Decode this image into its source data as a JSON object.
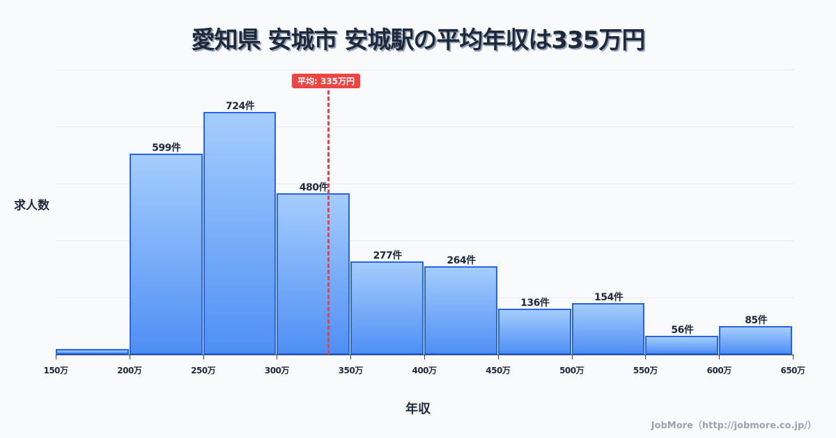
{
  "title": "愛知県 安城市 安城駅の平均年収は335万円",
  "y_axis_label": "求人数",
  "x_axis_label": "年収",
  "credit": "JobMore（http://jobmore.co.jp/）",
  "mean_badge": "平均: 335万円",
  "colors": {
    "bar_border": "#2563eb",
    "bar_top": "#a5cdfd",
    "bar_bottom": "#4f8ff4",
    "mean_line": "#ef4444",
    "text": "#1e293b"
  },
  "ticks": [
    "150万",
    "200万",
    "250万",
    "300万",
    "350万",
    "400万",
    "450万",
    "500万",
    "550万",
    "600万",
    "650万"
  ],
  "bars": [
    {
      "range": "150-200万",
      "value": 17,
      "label": ""
    },
    {
      "range": "200-250万",
      "value": 599,
      "label": "599件"
    },
    {
      "range": "250-300万",
      "value": 724,
      "label": "724件"
    },
    {
      "range": "300-350万",
      "value": 480,
      "label": "480件"
    },
    {
      "range": "350-400万",
      "value": 277,
      "label": "277件"
    },
    {
      "range": "400-450万",
      "value": 264,
      "label": "264件"
    },
    {
      "range": "450-500万",
      "value": 136,
      "label": "136件"
    },
    {
      "range": "500-550万",
      "value": 154,
      "label": "154件"
    },
    {
      "range": "550-600万",
      "value": 56,
      "label": "56件"
    },
    {
      "range": "600-650万",
      "value": 85,
      "label": "85件"
    }
  ],
  "chart_data": {
    "type": "bar",
    "title": "愛知県 安城市 安城駅の平均年収は335万円",
    "xlabel": "年収",
    "ylabel": "求人数",
    "categories": [
      "150-200万",
      "200-250万",
      "250-300万",
      "300-350万",
      "350-400万",
      "400-450万",
      "450-500万",
      "500-550万",
      "550-600万",
      "600-650万"
    ],
    "values": [
      17,
      599,
      724,
      480,
      277,
      264,
      136,
      154,
      56,
      85
    ],
    "x_ticks": [
      "150万",
      "200万",
      "250万",
      "300万",
      "350万",
      "400万",
      "450万",
      "500万",
      "550万",
      "600万",
      "650万"
    ],
    "ylim": [
      0,
      850
    ],
    "grid": true,
    "annotations": [
      {
        "type": "vline",
        "x": 335,
        "label": "平均: 335万円",
        "color": "#ef4444",
        "style": "dashed"
      }
    ],
    "notes": "Histogram; first bin value unlabeled, estimated from bar height"
  }
}
